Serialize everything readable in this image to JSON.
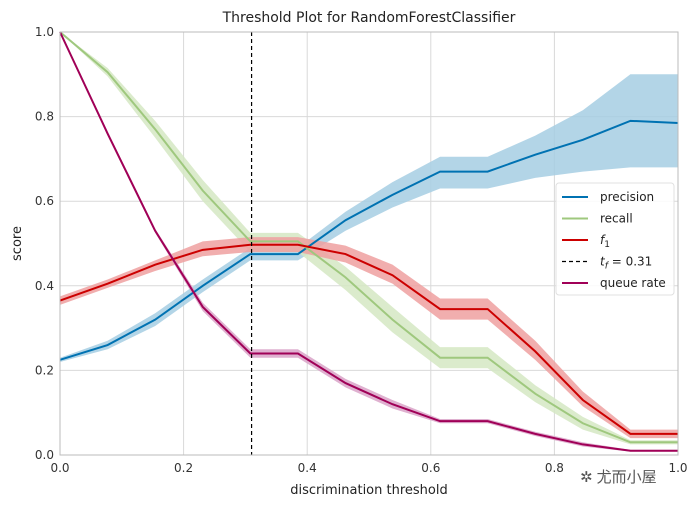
{
  "chart_data": {
    "type": "line",
    "title": "Threshold Plot for RandomForestClassifier",
    "xlabel": "discrimination threshold",
    "ylabel": "score",
    "xlim": [
      0,
      1
    ],
    "ylim": [
      0,
      1
    ],
    "xticks": [
      "0.0",
      "0.2",
      "0.4",
      "0.6",
      "0.8",
      "1.0"
    ],
    "yticks": [
      "0.0",
      "0.2",
      "0.4",
      "0.6",
      "0.8",
      "1.0"
    ],
    "grid": true,
    "legend_position": "right",
    "threshold_line": {
      "x": 0.31,
      "label": "t_f = 0.31"
    },
    "x": [
      0,
      0.077,
      0.154,
      0.231,
      0.308,
      0.385,
      0.462,
      0.538,
      0.615,
      0.692,
      0.769,
      0.846,
      0.923,
      1.0
    ],
    "series": [
      {
        "name": "precision",
        "color": "#0072b2",
        "band_color": "#a6cee3",
        "values": [
          0.225,
          0.26,
          0.32,
          0.4,
          0.475,
          0.475,
          0.555,
          0.615,
          0.67,
          0.67,
          0.71,
          0.745,
          0.79,
          0.785
        ],
        "lower": [
          0.22,
          0.25,
          0.305,
          0.385,
          0.46,
          0.46,
          0.53,
          0.585,
          0.63,
          0.63,
          0.655,
          0.67,
          0.68,
          0.68
        ],
        "upper": [
          0.23,
          0.27,
          0.335,
          0.415,
          0.49,
          0.49,
          0.575,
          0.645,
          0.705,
          0.705,
          0.755,
          0.815,
          0.9,
          0.9
        ]
      },
      {
        "name": "recall",
        "color": "#9fc87e",
        "band_color": "#d5e8c3",
        "values": [
          1.0,
          0.905,
          0.77,
          0.625,
          0.505,
          0.505,
          0.42,
          0.32,
          0.23,
          0.23,
          0.145,
          0.075,
          0.03,
          0.03
        ],
        "lower": [
          1.0,
          0.895,
          0.75,
          0.6,
          0.48,
          0.48,
          0.39,
          0.29,
          0.205,
          0.205,
          0.125,
          0.06,
          0.025,
          0.025
        ],
        "upper": [
          1.0,
          0.915,
          0.79,
          0.65,
          0.525,
          0.525,
          0.445,
          0.35,
          0.255,
          0.255,
          0.165,
          0.09,
          0.035,
          0.035
        ]
      },
      {
        "name": "f1",
        "color": "#cc0000",
        "band_color": "#eea0a0",
        "values": [
          0.365,
          0.405,
          0.45,
          0.485,
          0.497,
          0.497,
          0.475,
          0.425,
          0.345,
          0.345,
          0.245,
          0.13,
          0.05,
          0.05
        ],
        "lower": [
          0.355,
          0.395,
          0.435,
          0.47,
          0.48,
          0.48,
          0.455,
          0.405,
          0.32,
          0.32,
          0.225,
          0.115,
          0.04,
          0.04
        ],
        "upper": [
          0.375,
          0.415,
          0.46,
          0.505,
          0.515,
          0.515,
          0.495,
          0.45,
          0.37,
          0.37,
          0.27,
          0.15,
          0.06,
          0.06
        ]
      },
      {
        "name": "queue rate",
        "color": "#a00057",
        "band_color": "#d9a3c8",
        "values": [
          1.0,
          0.76,
          0.53,
          0.35,
          0.24,
          0.24,
          0.17,
          0.12,
          0.08,
          0.08,
          0.05,
          0.025,
          0.01,
          0.01
        ],
        "lower": [
          1.0,
          0.755,
          0.525,
          0.34,
          0.23,
          0.23,
          0.16,
          0.11,
          0.075,
          0.075,
          0.045,
          0.02,
          0.008,
          0.008
        ],
        "upper": [
          1.0,
          0.765,
          0.535,
          0.36,
          0.25,
          0.25,
          0.18,
          0.13,
          0.085,
          0.085,
          0.055,
          0.03,
          0.012,
          0.012
        ]
      }
    ],
    "legend": [
      {
        "label": "precision",
        "style": "solid",
        "color": "#0072b2"
      },
      {
        "label": "recall",
        "style": "solid",
        "color": "#9fc87e"
      },
      {
        "label": "f_1",
        "style": "solid",
        "color": "#cc0000"
      },
      {
        "label": "t_f = 0.31",
        "style": "dashed",
        "color": "#000000"
      },
      {
        "label": "queue rate",
        "style": "solid",
        "color": "#a00057"
      }
    ]
  },
  "watermark": {
    "text": "尤而小屋"
  }
}
